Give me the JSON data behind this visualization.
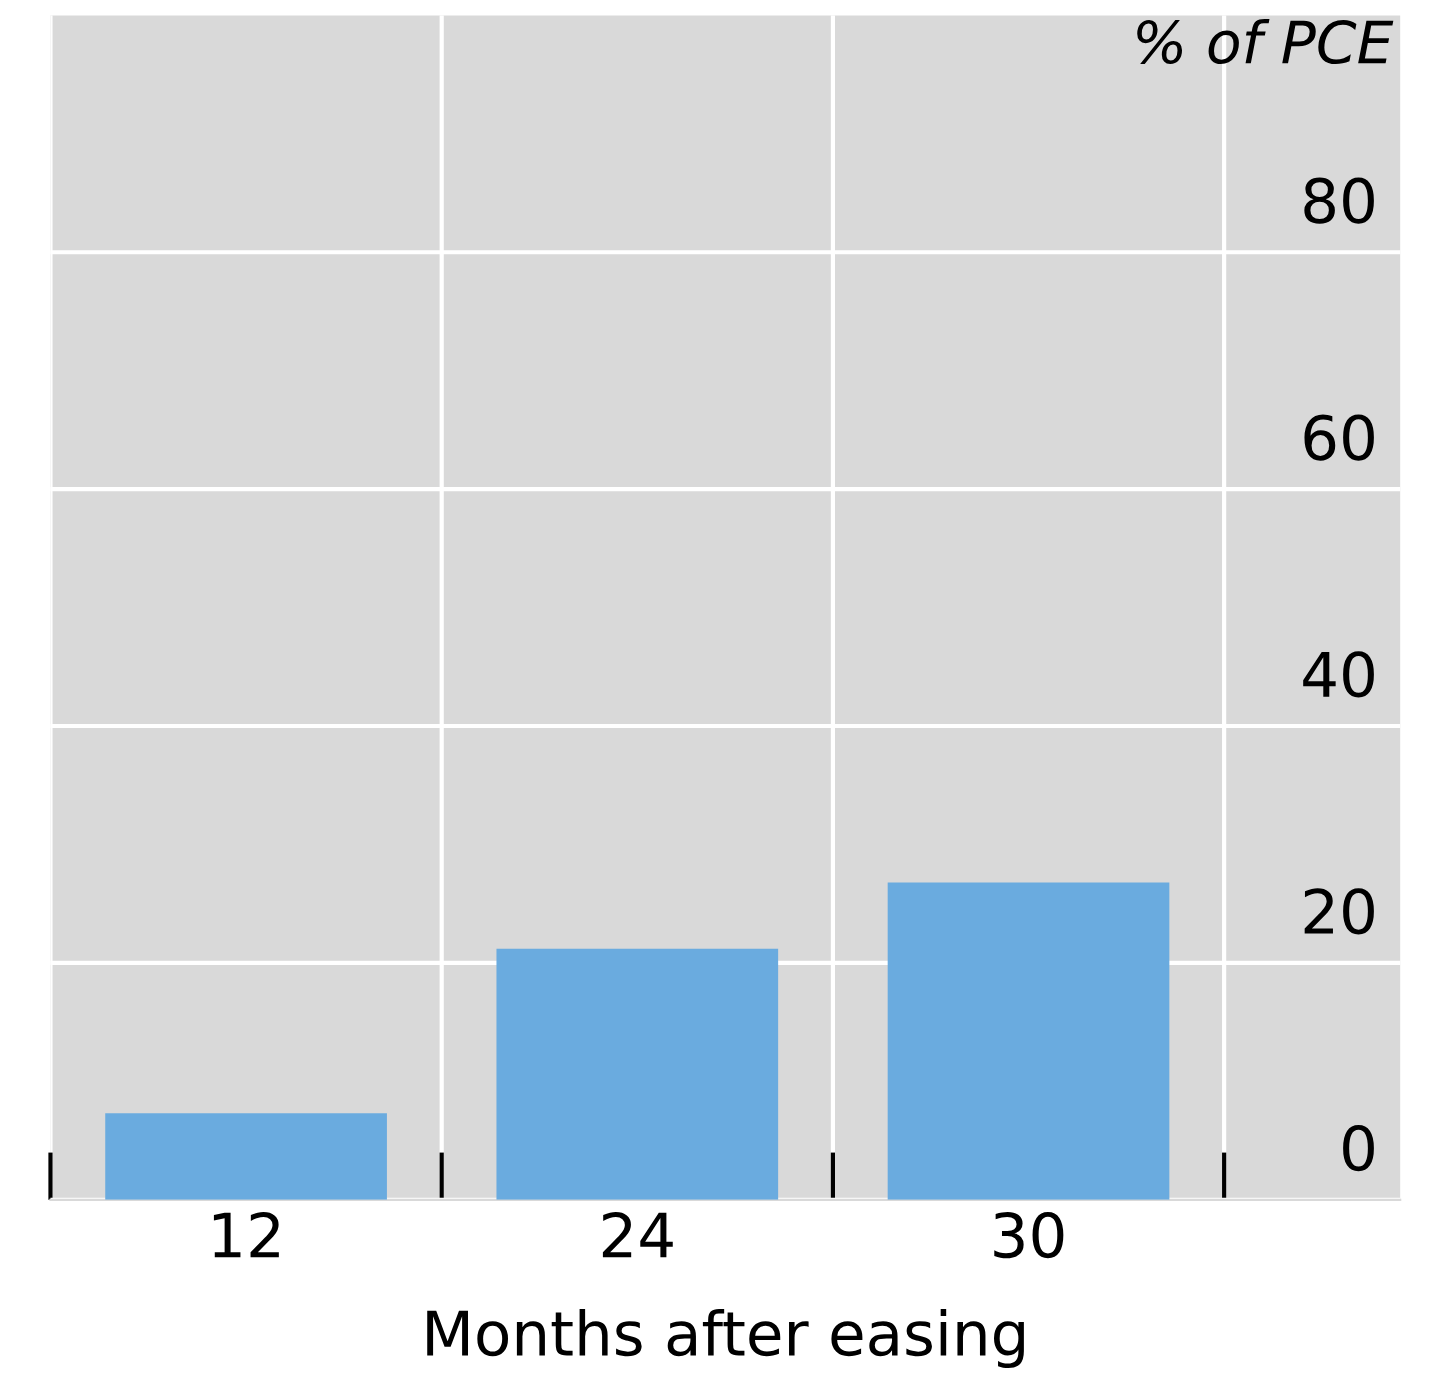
{
  "chart_data": {
    "type": "bar",
    "ylabel": "% of PCE",
    "xlabel": "Months after easing",
    "categories": [
      "12",
      "24",
      "30"
    ],
    "values": [
      7.3,
      21.2,
      26.8
    ],
    "color": "#6aabdf",
    "ylim": [
      0,
      100
    ],
    "yticks": [
      0,
      20,
      40,
      60,
      80
    ],
    "grid": true
  }
}
